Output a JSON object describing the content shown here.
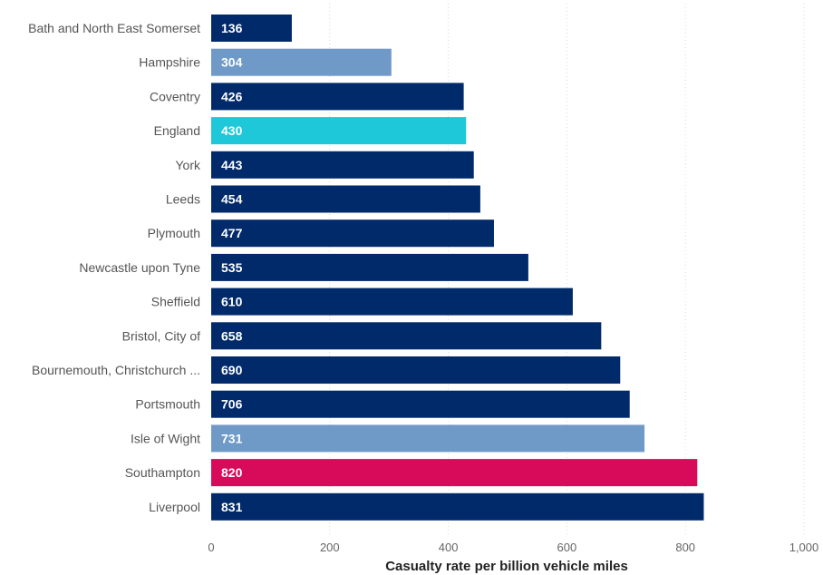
{
  "chart_data": {
    "type": "bar",
    "orientation": "horizontal",
    "categories": [
      "Bath and North East Somerset",
      "Hampshire",
      "Coventry",
      "England",
      "York",
      "Leeds",
      "Plymouth",
      "Newcastle upon Tyne",
      "Sheffield",
      "Bristol, City of",
      "Bournemouth, Christchurch ...",
      "Portsmouth",
      "Isle of Wight",
      "Southampton",
      "Liverpool"
    ],
    "values": [
      136,
      304,
      426,
      430,
      443,
      454,
      477,
      535,
      610,
      658,
      690,
      706,
      731,
      820,
      831
    ],
    "data_labels": [
      "136",
      "304",
      "426",
      "430",
      "443",
      "454",
      "477",
      "535",
      "610",
      "658",
      "690",
      "706",
      "731",
      "820",
      "831"
    ],
    "bar_colors": [
      "#012a6b",
      "#6f9ac7",
      "#012a6b",
      "#1ec8d8",
      "#012a6b",
      "#012a6b",
      "#012a6b",
      "#012a6b",
      "#012a6b",
      "#012a6b",
      "#012a6b",
      "#012a6b",
      "#6f9ac7",
      "#d80b5a",
      "#012a6b"
    ],
    "xlabel": "Casualty rate per billion vehicle miles",
    "xlim": [
      0,
      1000
    ],
    "xticks": [
      0,
      200,
      400,
      600,
      800,
      1000
    ],
    "xtick_labels": [
      "0",
      "200",
      "400",
      "600",
      "800",
      "1,000"
    ],
    "grid": true,
    "legend": "none"
  }
}
